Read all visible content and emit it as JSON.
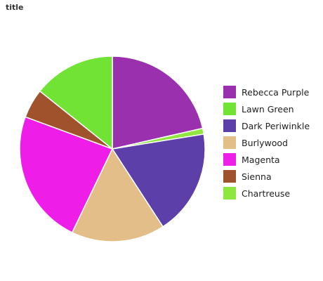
{
  "title": "title",
  "chart_data": {
    "type": "pie",
    "title": "title",
    "legend_position": "right",
    "slices": [
      {
        "name": "Rebecca Purple",
        "value": 21,
        "color": "#9b30ae"
      },
      {
        "name": "Chartreuse",
        "value": 1,
        "color": "#8ee63f"
      },
      {
        "name": "Dark Periwinkle",
        "value": 18,
        "color": "#5d3fa9"
      },
      {
        "name": "Burlywood",
        "value": 16,
        "color": "#e3be88"
      },
      {
        "name": "Magenta",
        "value": 23,
        "color": "#ee1ee8"
      },
      {
        "name": "Sienna",
        "value": 5,
        "color": "#a0522d"
      },
      {
        "name": "Lawn Green",
        "value": 14,
        "color": "#71e335"
      }
    ],
    "legend": [
      {
        "name": "Rebecca Purple",
        "color": "#9b30ae"
      },
      {
        "name": "Lawn Green",
        "color": "#71e335"
      },
      {
        "name": "Dark Periwinkle",
        "color": "#5d3fa9"
      },
      {
        "name": "Burlywood",
        "color": "#e3be88"
      },
      {
        "name": "Magenta",
        "color": "#ee1ee8"
      },
      {
        "name": "Sienna",
        "color": "#a0522d"
      },
      {
        "name": "Chartreuse",
        "color": "#8ee63f"
      }
    ]
  }
}
